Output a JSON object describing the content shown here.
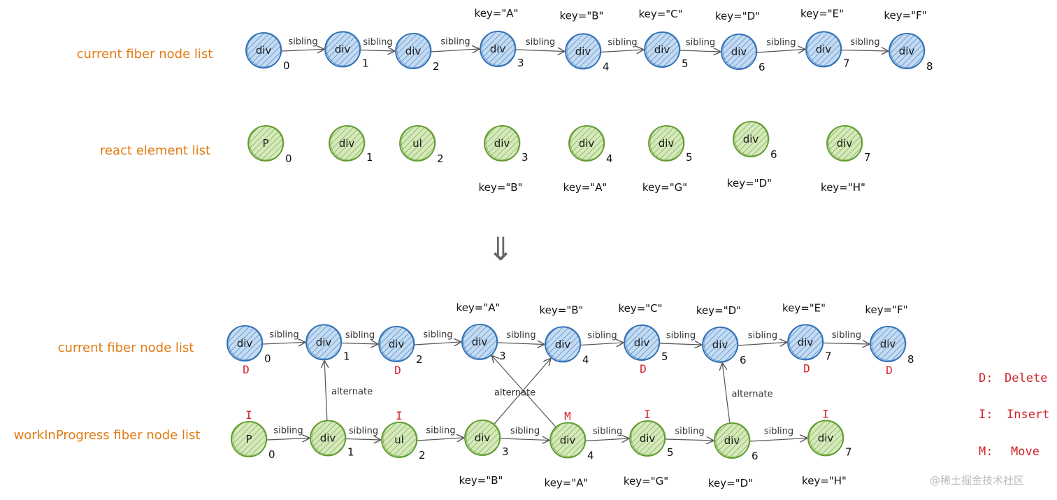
{
  "colors": {
    "blue_fill": "#a9c9ea",
    "blue_stroke": "#2f6fb5",
    "green_fill": "#c3dea0",
    "green_stroke": "#5f9a2c",
    "label": "#e07b14",
    "mark": "#d2232a"
  },
  "sibling_label": "sibling",
  "alternate_label": "alternate",
  "rows": [
    {
      "id": "top-current",
      "label": "current fiber node list",
      "color": "blue",
      "chain": true,
      "nodes": [
        {
          "text": "div",
          "index": "0",
          "key": ""
        },
        {
          "text": "div",
          "index": "1",
          "key": ""
        },
        {
          "text": "div",
          "index": "2",
          "key": ""
        },
        {
          "text": "div",
          "index": "3",
          "key": "key=\"A\""
        },
        {
          "text": "div",
          "index": "4",
          "key": "key=\"B\""
        },
        {
          "text": "div",
          "index": "5",
          "key": "key=\"C\""
        },
        {
          "text": "div",
          "index": "6",
          "key": "key=\"D\""
        },
        {
          "text": "div",
          "index": "7",
          "key": "key=\"E\""
        },
        {
          "text": "div",
          "index": "8",
          "key": "key=\"F\""
        }
      ]
    },
    {
      "id": "react-elements",
      "label": "react element list",
      "color": "green",
      "chain": false,
      "nodes": [
        {
          "text": "P",
          "index": "0",
          "key": ""
        },
        {
          "text": "div",
          "index": "1",
          "key": ""
        },
        {
          "text": "ul",
          "index": "2",
          "key": ""
        },
        {
          "text": "div",
          "index": "3",
          "key": "key=\"B\""
        },
        {
          "text": "div",
          "index": "4",
          "key": "key=\"A\""
        },
        {
          "text": "div",
          "index": "5",
          "key": "key=\"G\""
        },
        {
          "text": "div",
          "index": "6",
          "key": "key=\"D\""
        },
        {
          "text": "div",
          "index": "7",
          "key": "key=\"H\""
        }
      ]
    },
    {
      "id": "bottom-current",
      "label": "current fiber node list",
      "color": "blue",
      "chain": true,
      "nodes": [
        {
          "text": "div",
          "index": "0",
          "key": "",
          "mark": "D"
        },
        {
          "text": "div",
          "index": "1",
          "key": ""
        },
        {
          "text": "div",
          "index": "2",
          "key": "",
          "mark": "D"
        },
        {
          "text": "div",
          "index": "3",
          "key": "key=\"A\""
        },
        {
          "text": "div",
          "index": "4",
          "key": "key=\"B\""
        },
        {
          "text": "div",
          "index": "5",
          "key": "key=\"C\"",
          "mark": "D"
        },
        {
          "text": "div",
          "index": "6",
          "key": "key=\"D\""
        },
        {
          "text": "div",
          "index": "7",
          "key": "key=\"E\"",
          "mark": "D"
        },
        {
          "text": "div",
          "index": "8",
          "key": "key=\"F\"",
          "mark": "D"
        }
      ]
    },
    {
      "id": "work-in-progress",
      "label": "workInProgress fiber node list",
      "color": "green",
      "chain": true,
      "nodes": [
        {
          "text": "P",
          "index": "0",
          "key": "",
          "mark": "I"
        },
        {
          "text": "div",
          "index": "1",
          "key": ""
        },
        {
          "text": "ul",
          "index": "2",
          "key": "",
          "mark": "I"
        },
        {
          "text": "div",
          "index": "3",
          "key": "key=\"B\""
        },
        {
          "text": "div",
          "index": "4",
          "key": "key=\"A\"",
          "mark": "M"
        },
        {
          "text": "div",
          "index": "5",
          "key": "key=\"G\"",
          "mark": "I"
        },
        {
          "text": "div",
          "index": "6",
          "key": "key=\"D\""
        },
        {
          "text": "div",
          "index": "7",
          "key": "key=\"H\"",
          "mark": "I"
        }
      ]
    }
  ],
  "alternates": [
    {
      "from": "1",
      "to": "1"
    },
    {
      "from": "3",
      "to": "4"
    },
    {
      "from": "4",
      "to": "3"
    },
    {
      "from": "6",
      "to": "6"
    }
  ],
  "legend": [
    {
      "code": "D:",
      "word": "Delete"
    },
    {
      "code": "I:",
      "word": "Insert"
    },
    {
      "code": "M:",
      "word": "Move"
    }
  ],
  "transition_arrow": "⇓",
  "watermark": "@稀土掘金技术社区"
}
